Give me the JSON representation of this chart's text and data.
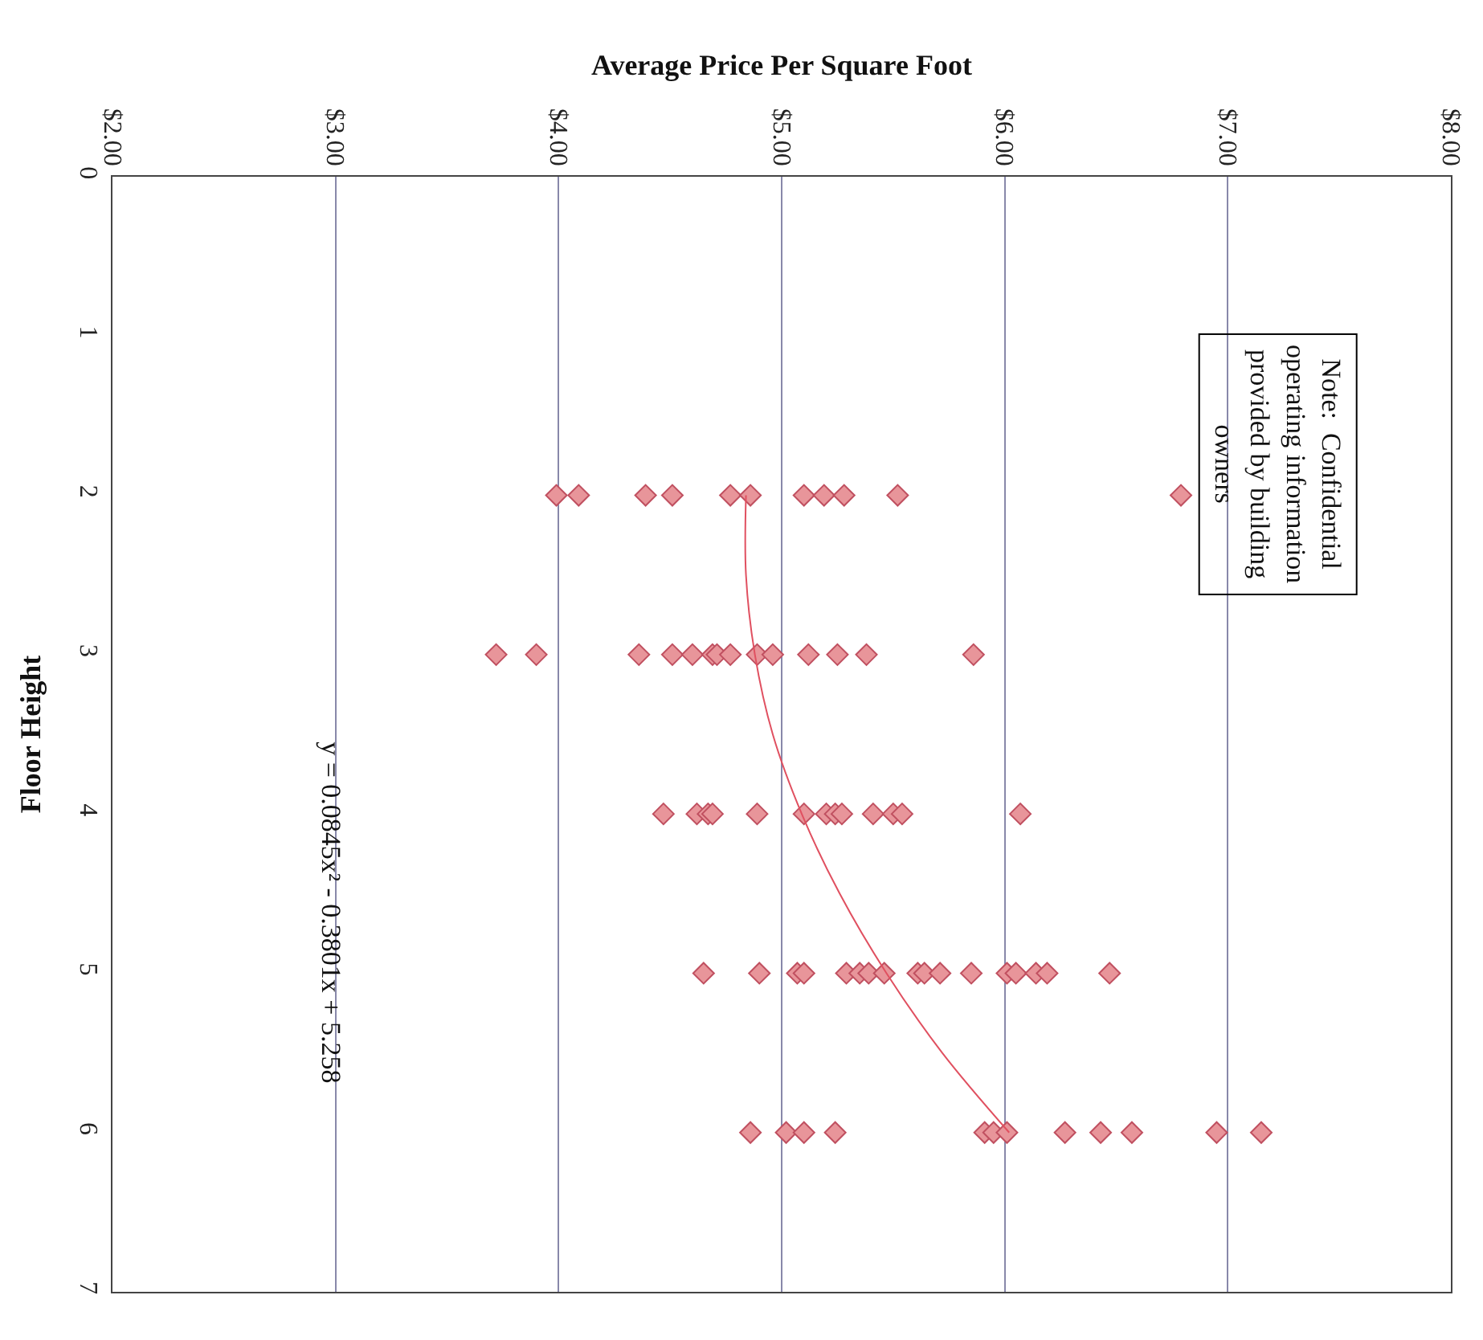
{
  "chart_data": {
    "type": "scatter",
    "orientation": "horizontal",
    "xlabel": "Average Price Per Square Foot",
    "ylabel": "Floor Height",
    "xlim": [
      2,
      8
    ],
    "xticks": [
      {
        "value": 2,
        "label": "$2.00"
      },
      {
        "value": 3,
        "label": "$3.00"
      },
      {
        "value": 4,
        "label": "$4.00"
      },
      {
        "value": 5,
        "label": "$5.00"
      },
      {
        "value": 6,
        "label": "$6.00"
      },
      {
        "value": 7,
        "label": "$7.00"
      },
      {
        "value": 8,
        "label": "$8.00"
      }
    ],
    "ylim": [
      7,
      0
    ],
    "yticks": [
      0,
      1,
      2,
      3,
      4,
      5,
      6,
      7
    ],
    "grid": "x",
    "marker": "diamond",
    "series": [
      {
        "color": "#e8959a",
        "x": [
          2,
          2,
          2,
          2,
          2,
          2,
          2,
          2,
          2,
          2,
          2,
          3,
          3,
          3,
          3,
          3,
          3,
          3,
          3,
          3,
          3,
          3,
          3,
          3,
          3,
          4,
          4,
          4,
          4,
          4,
          4,
          4,
          4,
          4,
          4,
          4,
          4,
          4,
          5,
          5,
          5,
          5,
          5,
          5,
          5,
          5,
          5,
          5,
          5,
          5,
          5,
          5,
          5,
          5,
          5,
          6,
          6,
          6,
          6,
          6,
          6,
          6,
          6,
          6,
          6,
          6,
          6
        ],
        "values": [
          3.99,
          4.09,
          4.39,
          4.51,
          4.77,
          4.86,
          5.1,
          5.19,
          5.28,
          5.52,
          6.79,
          3.72,
          3.9,
          4.36,
          4.51,
          4.6,
          4.69,
          4.71,
          4.77,
          4.89,
          4.96,
          5.12,
          5.25,
          5.38,
          5.86,
          4.47,
          4.62,
          4.67,
          4.69,
          4.89,
          5.1,
          5.2,
          5.24,
          5.27,
          5.41,
          5.5,
          5.54,
          6.07,
          4.65,
          4.9,
          5.07,
          5.1,
          5.29,
          5.35,
          5.39,
          5.46,
          5.61,
          5.64,
          5.71,
          5.85,
          6.01,
          6.05,
          6.14,
          6.19,
          6.47,
          4.86,
          5.02,
          5.1,
          5.24,
          5.91,
          5.95,
          6.01,
          6.27,
          6.43,
          6.57,
          6.95,
          7.15
        ]
      },
      {
        "type": "line",
        "marker": "none",
        "color": "#e05060",
        "x": [
          2,
          2.5,
          3,
          3.5,
          4,
          4.5,
          5,
          5.5,
          6
        ],
        "values": [
          4.84,
          4.84,
          4.88,
          4.96,
          5.09,
          5.26,
          5.47,
          5.72,
          6.02
        ]
      }
    ],
    "annotations": [
      "Note:  Confidential\noperating information\nprovided by building\nowners",
      "y = 0.0845x² - 0.3801x + 5.258"
    ]
  }
}
